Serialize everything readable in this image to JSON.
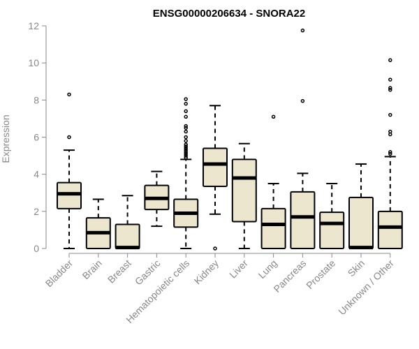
{
  "chart_data": {
    "type": "box",
    "title": "ENSG00000206634 - SNORA22",
    "xlabel": "",
    "ylabel": "Expression",
    "ylim": [
      0,
      12
    ],
    "yticks": [
      0,
      2,
      4,
      6,
      8,
      10,
      12
    ],
    "grid": false,
    "box_fill": "#ede6cf",
    "box_stroke": "#000000",
    "categories": [
      "Bladder",
      "Brain",
      "Breast",
      "Gastric",
      "Hematopoietic cells",
      "Kidney",
      "Liver",
      "Lung",
      "Pancreas",
      "Prostate",
      "Skin",
      "Unknown / Other"
    ],
    "boxes": [
      {
        "category": "Bladder",
        "whisker_low": 0.0,
        "q1": 2.15,
        "median": 2.95,
        "q3": 3.55,
        "whisker_high": 5.3,
        "outliers": [
          6.0,
          8.3
        ]
      },
      {
        "category": "Brain",
        "whisker_low": 0.0,
        "q1": 0.0,
        "median": 0.85,
        "q3": 1.65,
        "whisker_high": 2.65,
        "outliers": []
      },
      {
        "category": "Breast",
        "whisker_low": 0.0,
        "q1": 0.0,
        "median": 0.05,
        "q3": 1.3,
        "whisker_high": 2.85,
        "outliers": []
      },
      {
        "category": "Gastric",
        "whisker_low": 1.2,
        "q1": 2.1,
        "median": 2.7,
        "q3": 3.4,
        "whisker_high": 4.15,
        "outliers": []
      },
      {
        "category": "Hematopoietic cells",
        "whisker_low": 0.0,
        "q1": 1.15,
        "median": 1.9,
        "q3": 2.65,
        "whisker_high": 4.8,
        "outliers": [
          4.9,
          5.0,
          5.1,
          5.2,
          5.3,
          5.4,
          5.5,
          5.6,
          5.8,
          6.0,
          6.3,
          6.5,
          6.6,
          7.1,
          7.4,
          7.8,
          8.05
        ]
      },
      {
        "category": "Kidney",
        "whisker_low": 1.85,
        "q1": 3.35,
        "median": 4.55,
        "q3": 5.4,
        "whisker_high": 7.7,
        "outliers": [
          0.0
        ]
      },
      {
        "category": "Liver",
        "whisker_low": 0.0,
        "q1": 1.45,
        "median": 3.8,
        "q3": 4.8,
        "whisker_high": 5.65,
        "outliers": []
      },
      {
        "category": "Lung",
        "whisker_low": 0.0,
        "q1": 0.0,
        "median": 1.3,
        "q3": 2.15,
        "whisker_high": 3.5,
        "outliers": [
          7.1
        ]
      },
      {
        "category": "Pancreas",
        "whisker_low": 0.0,
        "q1": 0.0,
        "median": 1.7,
        "q3": 3.05,
        "whisker_high": 4.05,
        "outliers": [
          7.95,
          11.75
        ]
      },
      {
        "category": "Prostate",
        "whisker_low": 0.0,
        "q1": 0.0,
        "median": 1.35,
        "q3": 1.95,
        "whisker_high": 3.5,
        "outliers": []
      },
      {
        "category": "Skin",
        "whisker_low": 0.0,
        "q1": 0.0,
        "median": 0.05,
        "q3": 2.75,
        "whisker_high": 4.55,
        "outliers": []
      },
      {
        "category": "Unknown / Other",
        "whisker_low": 0.0,
        "q1": 0.0,
        "median": 1.15,
        "q3": 2.0,
        "whisker_high": 4.95,
        "outliers": [
          5.1,
          5.2,
          6.15,
          6.3,
          7.2,
          8.55,
          8.65,
          9.1,
          10.15
        ]
      }
    ]
  }
}
